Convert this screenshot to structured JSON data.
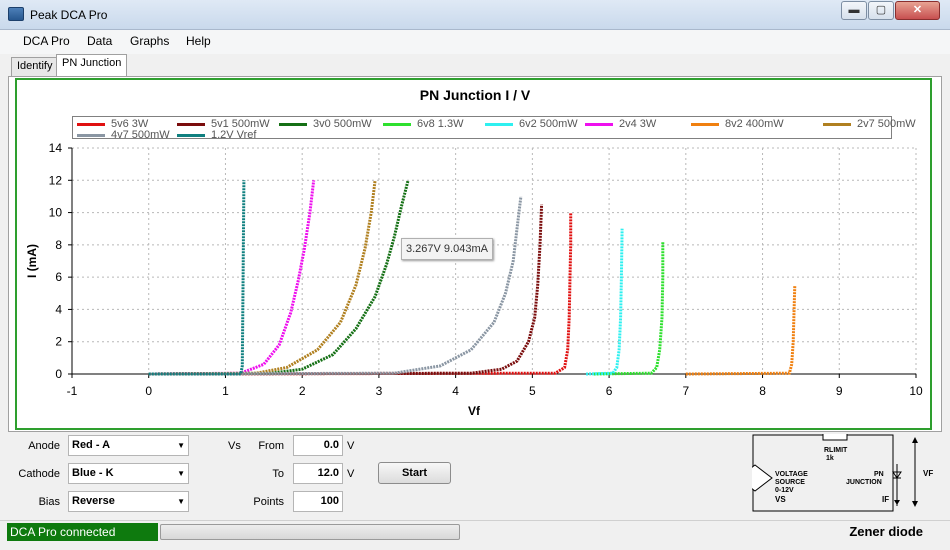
{
  "window": {
    "title": "Peak DCA Pro",
    "min_symbol": "▬",
    "max_symbol": "▢",
    "close_symbol": "✕"
  },
  "menu": [
    "DCA Pro",
    "Data",
    "Graphs",
    "Help"
  ],
  "tabs": [
    {
      "label": "Identify",
      "active": false
    },
    {
      "label": "PN Junction",
      "active": true
    }
  ],
  "tooltip": "3.267V 9.043mA",
  "chart_data": {
    "type": "line",
    "title": "PN Junction I / V",
    "xlabel": "Vf",
    "ylabel": "I (mA)",
    "xlim": [
      -1,
      10
    ],
    "ylim": [
      0,
      14
    ],
    "xticks": [
      "-1",
      "0",
      "1",
      "2",
      "3",
      "4",
      "5",
      "6",
      "7",
      "8",
      "9",
      "10"
    ],
    "yticks": [
      "0",
      "2",
      "4",
      "6",
      "8",
      "10",
      "12",
      "14"
    ],
    "grid": true,
    "legend_position": "top",
    "series": [
      {
        "name": "5v6 3W",
        "color": "#e01010",
        "points": [
          [
            0,
            0
          ],
          [
            5.3,
            0.05
          ],
          [
            5.42,
            0.4
          ],
          [
            5.46,
            1.5
          ],
          [
            5.48,
            3.5
          ],
          [
            5.49,
            6
          ],
          [
            5.5,
            8
          ],
          [
            5.5,
            10
          ]
        ]
      },
      {
        "name": "5v1 500mW",
        "color": "#7a0c0c",
        "points": [
          [
            0,
            0
          ],
          [
            4.2,
            0.05
          ],
          [
            4.6,
            0.3
          ],
          [
            4.8,
            0.8
          ],
          [
            4.95,
            2
          ],
          [
            5.03,
            3.5
          ],
          [
            5.07,
            5.5
          ],
          [
            5.1,
            8
          ],
          [
            5.12,
            10.5
          ]
        ]
      },
      {
        "name": "3v0 500mW",
        "color": "#157015",
        "points": [
          [
            0,
            0
          ],
          [
            1.6,
            0.05
          ],
          [
            2.0,
            0.3
          ],
          [
            2.4,
            1.2
          ],
          [
            2.7,
            2.8
          ],
          [
            2.95,
            4.8
          ],
          [
            3.1,
            6.8
          ],
          [
            3.2,
            8.5
          ],
          [
            3.3,
            10.5
          ],
          [
            3.38,
            12
          ]
        ]
      },
      {
        "name": "6v8 1.3W",
        "color": "#2ee02e",
        "points": [
          [
            5.8,
            0
          ],
          [
            6.55,
            0.05
          ],
          [
            6.62,
            0.4
          ],
          [
            6.66,
            1.5
          ],
          [
            6.69,
            3.5
          ],
          [
            6.7,
            6
          ],
          [
            6.7,
            8.2
          ]
        ]
      },
      {
        "name": "6v2 500mW",
        "color": "#2ef0f0",
        "points": [
          [
            5.7,
            0
          ],
          [
            6.05,
            0.05
          ],
          [
            6.1,
            0.4
          ],
          [
            6.13,
            1.5
          ],
          [
            6.15,
            3.5
          ],
          [
            6.16,
            6
          ],
          [
            6.17,
            9
          ]
        ]
      },
      {
        "name": "2v4 3W",
        "color": "#ee10ee",
        "points": [
          [
            0,
            0
          ],
          [
            1.2,
            0.05
          ],
          [
            1.5,
            0.6
          ],
          [
            1.7,
            1.8
          ],
          [
            1.85,
            3.8
          ],
          [
            1.95,
            5.8
          ],
          [
            2.03,
            7.8
          ],
          [
            2.1,
            10
          ],
          [
            2.15,
            12
          ]
        ]
      },
      {
        "name": "8v2 400mW",
        "color": "#f08010",
        "points": [
          [
            7.0,
            0
          ],
          [
            8.35,
            0.05
          ],
          [
            8.38,
            0.6
          ],
          [
            8.4,
            2
          ],
          [
            8.41,
            3.8
          ],
          [
            8.42,
            5.5
          ]
        ]
      },
      {
        "name": "2v7 500mW",
        "color": "#b08020",
        "points": [
          [
            0,
            0
          ],
          [
            1.4,
            0.05
          ],
          [
            1.8,
            0.4
          ],
          [
            2.2,
            1.5
          ],
          [
            2.5,
            3.2
          ],
          [
            2.7,
            5.5
          ],
          [
            2.82,
            7.8
          ],
          [
            2.9,
            10
          ],
          [
            2.95,
            12
          ]
        ]
      },
      {
        "name": "4v7 500mW",
        "color": "#8a96a3",
        "points": [
          [
            0,
            0
          ],
          [
            3.2,
            0.05
          ],
          [
            3.8,
            0.5
          ],
          [
            4.2,
            1.5
          ],
          [
            4.5,
            3.2
          ],
          [
            4.65,
            5
          ],
          [
            4.75,
            7
          ],
          [
            4.8,
            9
          ],
          [
            4.85,
            11
          ]
        ]
      },
      {
        "name": "1.2V Vref",
        "color": "#108080",
        "points": [
          [
            0,
            0
          ],
          [
            1.2,
            0
          ],
          [
            1.22,
            0.5
          ],
          [
            1.23,
            6
          ],
          [
            1.24,
            12
          ]
        ]
      }
    ]
  },
  "controls": {
    "anode_label": "Anode",
    "anode_value": "Red - A",
    "cathode_label": "Cathode",
    "cathode_value": "Blue - K",
    "bias_label": "Bias",
    "bias_value": "Reverse",
    "vs_label": "Vs",
    "from_label": "From",
    "from_value": "0.0",
    "from_unit": "V",
    "to_label": "To",
    "to_value": "12.0",
    "to_unit": "V",
    "points_label": "Points",
    "points_value": "100",
    "start_label": "Start",
    "dropdown_arrow": "▼"
  },
  "circuit": {
    "rlimit": "RLIMIT",
    "rlimit_value": "1k",
    "source_l1": "VOLTAGE",
    "source_l2": "SOURCE",
    "source_l3": "0-12V",
    "source_vs": "VS",
    "junction_l1": "PN",
    "junction_l2": "JUNCTION",
    "if_label": "IF",
    "vf_label": "VF"
  },
  "status": {
    "connection": "DCA Pro connected",
    "progress_fraction": 0.0,
    "component_type": "Zener diode"
  }
}
